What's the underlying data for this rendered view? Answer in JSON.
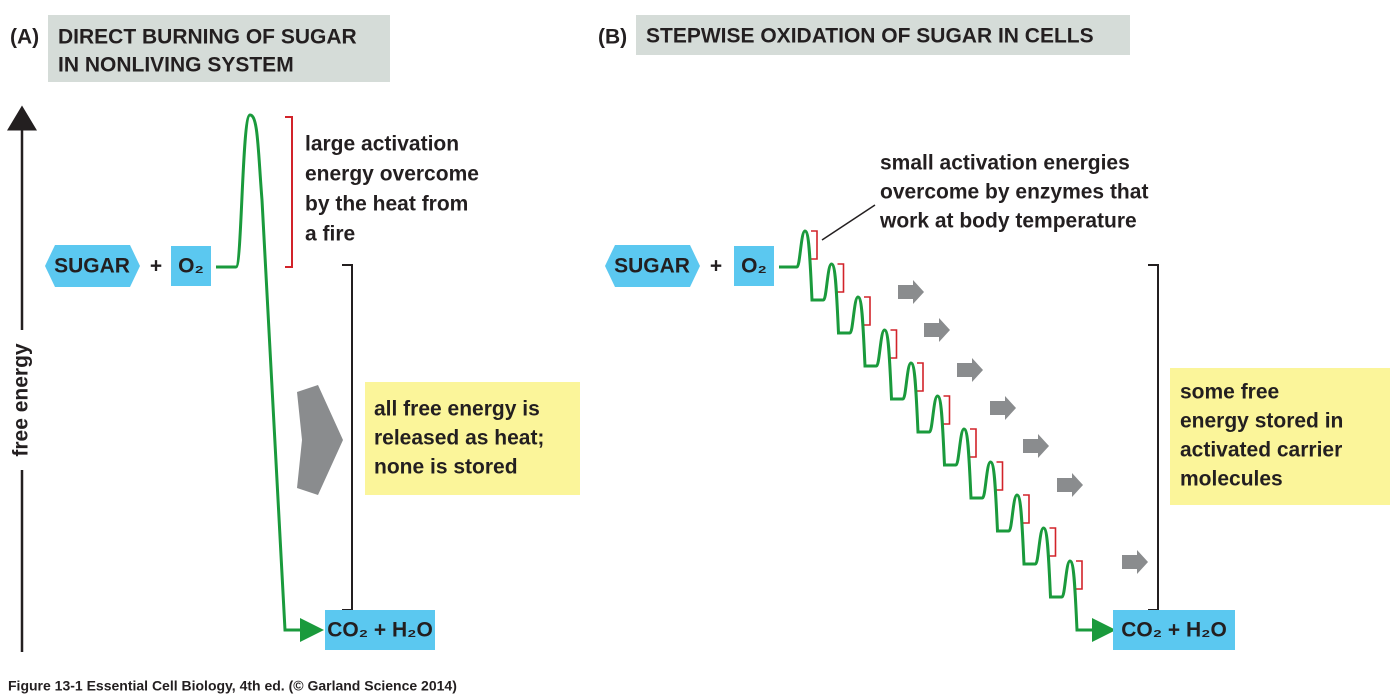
{
  "axis_label": "free energy",
  "panel_a": {
    "label": "(A)",
    "title": [
      "DIRECT BURNING OF SUGAR",
      "IN NONLIVING SYSTEM"
    ],
    "reactants": [
      "SUGAR",
      "+",
      "O₂"
    ],
    "product": "CO₂ + H₂O",
    "activation_note": [
      "large activation",
      "energy overcome",
      "by the heat from",
      "a fire"
    ],
    "result_note": [
      "all free energy is",
      "released as heat;",
      "none is stored"
    ]
  },
  "panel_b": {
    "label": "(B)",
    "title": "STEPWISE OXIDATION OF SUGAR IN CELLS",
    "reactants": [
      "SUGAR",
      "+",
      "O₂"
    ],
    "product": "CO₂ + H₂O",
    "activation_note": [
      "small activation energies",
      "overcome by enzymes that",
      "work at body temperature"
    ],
    "result_note": [
      "some free",
      "energy stored in",
      "activated carrier",
      "molecules"
    ]
  },
  "caption": "Figure 13-1  Essential Cell Biology, 4th ed. (© Garland Science 2014)"
}
